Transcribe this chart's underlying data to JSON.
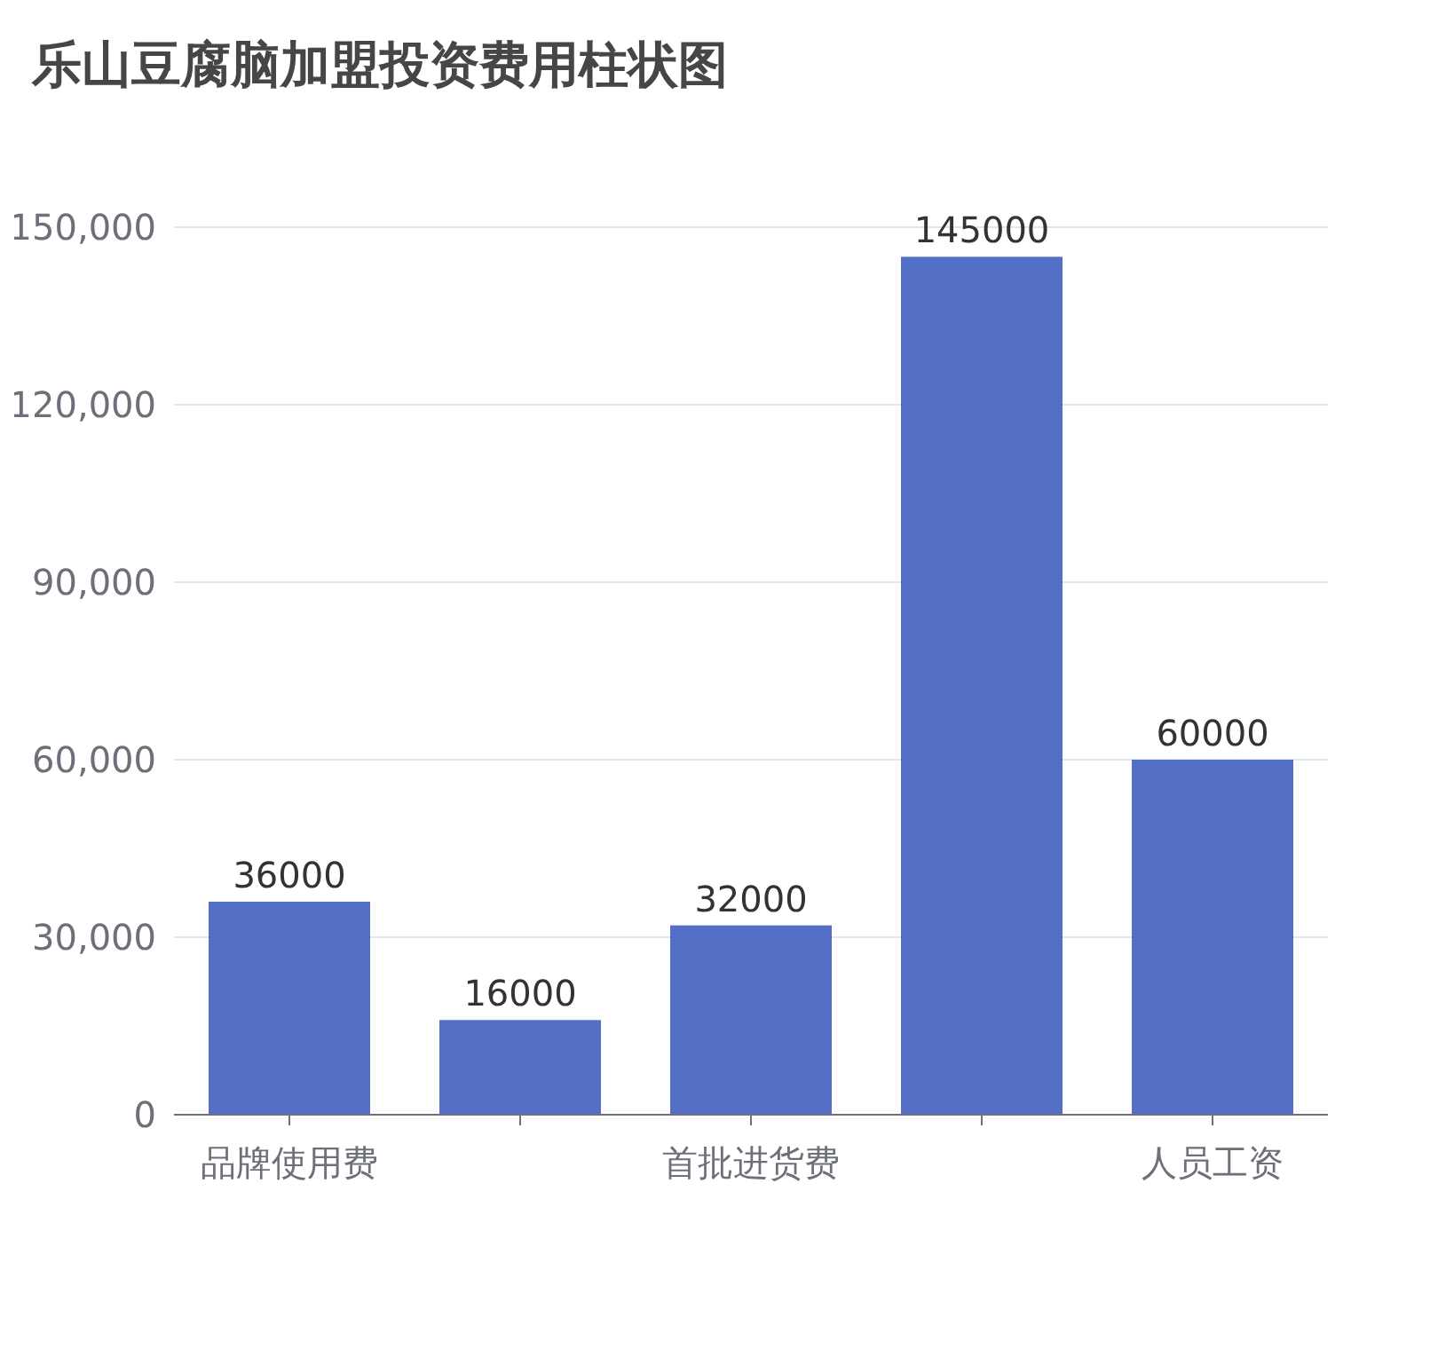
{
  "chart_data": {
    "type": "bar",
    "title": "乐山豆腐脑加盟投资费用柱状图",
    "categories": [
      "品牌使用费",
      null,
      "首批进货费",
      null,
      "人员工资"
    ],
    "values": [
      36000,
      16000,
      32000,
      145000,
      60000
    ],
    "color": "#5470c6",
    "ylim": [
      0,
      150000
    ],
    "yticks": [
      0,
      {
        "value": 30000,
        "label": "30,000"
      },
      {
        "value": 60000,
        "label": "60,000"
      },
      {
        "value": 90000,
        "label": "90,000"
      },
      {
        "value": 120000,
        "label": "120,000"
      },
      {
        "value": 150000,
        "label": "150,000"
      }
    ],
    "grid": "y",
    "data_labels": true
  }
}
